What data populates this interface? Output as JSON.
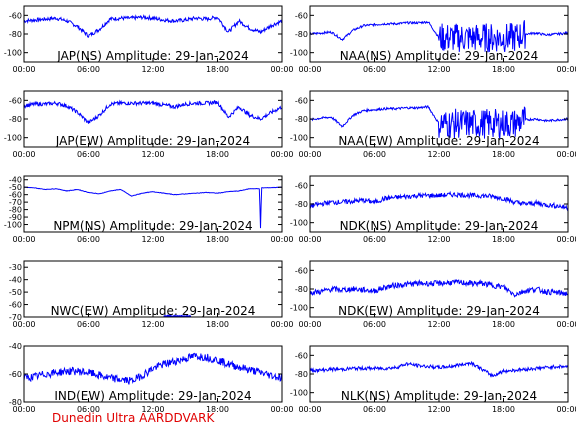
{
  "footer": "Dunedin Ultra AARDDVARK",
  "colors": {
    "trace": "#0000ff",
    "frame": "#000000",
    "footer": "#e00000"
  },
  "x_ticks": [
    "00:00",
    "06:00",
    "12:00",
    "18:00",
    "00:00"
  ],
  "chart_data": [
    {
      "type": "line",
      "title": "JAP(NS) Amplitude: 29-Jan-2024",
      "ylim": [
        -110,
        -50
      ],
      "yticks": [
        -60,
        -80,
        -100
      ],
      "xlim": [
        0,
        24
      ],
      "x": [
        0,
        1,
        2,
        3,
        4,
        5,
        6,
        7,
        8,
        9,
        10,
        11,
        12,
        13,
        14,
        15,
        16,
        17,
        18,
        19,
        20,
        21,
        22,
        23,
        24
      ],
      "values": [
        -66,
        -65,
        -64,
        -63,
        -66,
        -72,
        -82,
        -75,
        -64,
        -63,
        -63,
        -62,
        -63,
        -65,
        -66,
        -65,
        -63,
        -64,
        -62,
        -78,
        -66,
        -74,
        -78,
        -71,
        -66
      ],
      "noise": 2.0
    },
    {
      "type": "line",
      "title": "NAA(NS) Amplitude: 29-Jan-2024",
      "ylim": [
        -110,
        -50
      ],
      "yticks": [
        -60,
        -80,
        -100
      ],
      "xlim": [
        0,
        24
      ],
      "x": [
        0,
        1,
        2,
        3,
        4,
        5,
        6,
        7,
        8,
        9,
        10,
        11,
        12,
        13,
        14,
        15,
        16,
        17,
        18,
        19,
        20,
        21,
        22,
        23,
        24
      ],
      "values": [
        -80,
        -79,
        -78,
        -86,
        -76,
        -71,
        -70,
        -69,
        -69,
        -68,
        -68,
        -67,
        -84,
        -84,
        -84,
        -84,
        -84,
        -84,
        -84,
        -84,
        -80,
        -79,
        -81,
        -80,
        -79
      ],
      "noise": 1.2,
      "wide": [
        12,
        20
      ]
    },
    {
      "type": "line",
      "title": "JAP(EW) Amplitude: 29-Jan-2024",
      "ylim": [
        -110,
        -50
      ],
      "yticks": [
        -60,
        -80,
        -100
      ],
      "xlim": [
        0,
        24
      ],
      "x": [
        0,
        1,
        2,
        3,
        4,
        5,
        6,
        7,
        8,
        9,
        10,
        11,
        12,
        13,
        14,
        15,
        16,
        17,
        18,
        19,
        20,
        21,
        22,
        23,
        24
      ],
      "values": [
        -66,
        -64,
        -64,
        -63,
        -66,
        -73,
        -84,
        -76,
        -64,
        -63,
        -63,
        -63,
        -63,
        -65,
        -67,
        -64,
        -63,
        -63,
        -62,
        -78,
        -67,
        -76,
        -80,
        -73,
        -67
      ],
      "noise": 2.0
    },
    {
      "type": "line",
      "title": "NAA(EW) Amplitude: 29-Jan-2024",
      "ylim": [
        -110,
        -50
      ],
      "yticks": [
        -60,
        -80,
        -100
      ],
      "xlim": [
        0,
        24
      ],
      "x": [
        0,
        1,
        2,
        3,
        4,
        5,
        6,
        7,
        8,
        9,
        10,
        11,
        12,
        13,
        14,
        15,
        16,
        17,
        18,
        19,
        20,
        21,
        22,
        23,
        24
      ],
      "values": [
        -81,
        -79,
        -78,
        -88,
        -76,
        -71,
        -70,
        -69,
        -69,
        -68,
        -68,
        -67,
        -85,
        -85,
        -85,
        -85,
        -85,
        -85,
        -85,
        -85,
        -81,
        -80,
        -82,
        -81,
        -80
      ],
      "noise": 1.2,
      "wide": [
        12,
        20
      ]
    },
    {
      "type": "line",
      "title": "NPM(NS) Amplitude: 29-Jan-2024",
      "ylim": [
        -110,
        -35
      ],
      "yticks": [
        -40,
        -50,
        -60,
        -70,
        -80,
        -90,
        -100
      ],
      "xlim": [
        0,
        24
      ],
      "x": [
        0,
        1,
        2,
        3,
        4,
        5,
        6,
        7,
        8,
        9,
        10,
        11,
        12,
        13,
        14,
        15,
        16,
        17,
        18,
        19,
        20,
        21,
        21.9,
        22.0,
        22.1,
        24
      ],
      "values": [
        -50,
        -51,
        -53,
        -52,
        -55,
        -53,
        -57,
        -59,
        -55,
        -53,
        -62,
        -58,
        -56,
        -58,
        -60,
        -59,
        -58,
        -57,
        -58,
        -56,
        -55,
        -52,
        -52,
        -105,
        -51,
        -50
      ],
      "noise": 0.3
    },
    {
      "type": "line",
      "title": "NDK(NS) Amplitude: 29-Jan-2024",
      "ylim": [
        -110,
        -50
      ],
      "yticks": [
        -60,
        -80,
        -100
      ],
      "xlim": [
        0,
        24
      ],
      "x": [
        0,
        1,
        2,
        3,
        4,
        5,
        6,
        7,
        8,
        9,
        10,
        11,
        12,
        13,
        14,
        15,
        16,
        17,
        18,
        19,
        20,
        21,
        22,
        23,
        24
      ],
      "values": [
        -82,
        -80,
        -78,
        -78,
        -77,
        -76,
        -78,
        -74,
        -73,
        -72,
        -71,
        -71,
        -71,
        -70,
        -70,
        -71,
        -71,
        -72,
        -74,
        -78,
        -80,
        -79,
        -81,
        -82,
        -84
      ],
      "noise": 2.6
    },
    {
      "type": "line",
      "title": "NWC(EW) Amplitude: 29-Jan-2024",
      "ylim": [
        -70,
        -25
      ],
      "yticks": [
        -30,
        -40,
        -50,
        -60,
        -70
      ],
      "xlim": [
        0,
        24
      ],
      "x": [
        13,
        13.5,
        14,
        14.5,
        15,
        15.5
      ],
      "values": [
        -69.5,
        -69.2,
        -69.6,
        -69.3,
        -69.5,
        -69.4
      ],
      "noise": 0.4
    },
    {
      "type": "line",
      "title": "NDK(EW) Amplitude: 29-Jan-2024",
      "ylim": [
        -110,
        -50
      ],
      "yticks": [
        -60,
        -80,
        -100
      ],
      "xlim": [
        0,
        24
      ],
      "x": [
        0,
        1,
        2,
        3,
        4,
        5,
        6,
        7,
        8,
        9,
        10,
        11,
        12,
        13,
        14,
        15,
        16,
        17,
        18,
        19,
        20,
        21,
        22,
        23,
        24
      ],
      "values": [
        -84,
        -83,
        -80,
        -81,
        -80,
        -81,
        -82,
        -78,
        -76,
        -75,
        -74,
        -74,
        -74,
        -73,
        -73,
        -74,
        -74,
        -76,
        -78,
        -86,
        -82,
        -80,
        -83,
        -84,
        -85
      ],
      "noise": 3.0
    },
    {
      "type": "line",
      "title": "IND(EW) Amplitude: 29-Jan-2024",
      "ylim": [
        -80,
        -40
      ],
      "yticks": [
        -40,
        -60,
        -80
      ],
      "xlim": [
        0,
        24
      ],
      "x": [
        0,
        1,
        2,
        3,
        4,
        5,
        6,
        7,
        8,
        9,
        10,
        11,
        12,
        13,
        14,
        15,
        16,
        17,
        18,
        19,
        20,
        21,
        22,
        23,
        24
      ],
      "values": [
        -63,
        -62,
        -60,
        -59,
        -58,
        -58,
        -59,
        -61,
        -63,
        -64,
        -65,
        -61,
        -56,
        -53,
        -51,
        -49,
        -47,
        -48,
        -50,
        -53,
        -55,
        -57,
        -59,
        -61,
        -63
      ],
      "noise": 2.8
    },
    {
      "type": "line",
      "title": "NLK(NS) Amplitude: 29-Jan-2024",
      "ylim": [
        -110,
        -50
      ],
      "yticks": [
        -60,
        -80,
        -100
      ],
      "xlim": [
        0,
        24
      ],
      "x": [
        0,
        1,
        2,
        3,
        4,
        5,
        6,
        7,
        8,
        9,
        10,
        11,
        12,
        13,
        14,
        15,
        16,
        17,
        18,
        19,
        20,
        21,
        22,
        23,
        24
      ],
      "values": [
        -76,
        -76,
        -75,
        -75,
        -74,
        -74,
        -74,
        -74,
        -73,
        -69,
        -71,
        -72,
        -73,
        -72,
        -70,
        -68,
        -75,
        -82,
        -77,
        -76,
        -75,
        -74,
        -73,
        -72,
        -72
      ],
      "noise": 1.8
    }
  ]
}
